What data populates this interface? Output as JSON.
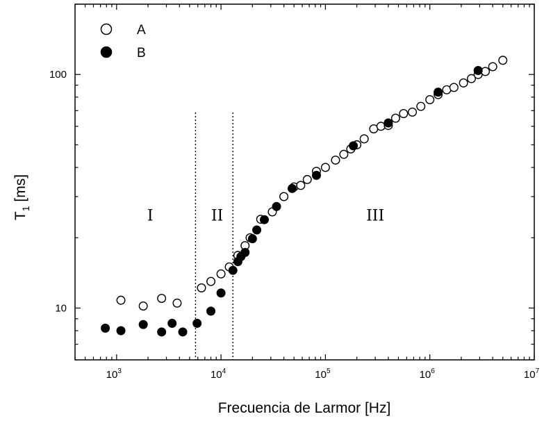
{
  "chart_data": {
    "type": "scatter",
    "xlabel": "Frecuencia de Larmor [Hz]",
    "ylabel_main": "T",
    "ylabel_sub": "1",
    "ylabel_tail": " [ms]",
    "x_scale": "log",
    "y_scale": "log",
    "xlim": [
      400,
      10000000
    ],
    "ylim": [
      6,
      200
    ],
    "x_ticks": [
      {
        "value": 1000,
        "base": "10",
        "exp": "3"
      },
      {
        "value": 10000,
        "base": "10",
        "exp": "4"
      },
      {
        "value": 100000,
        "base": "10",
        "exp": "5"
      },
      {
        "value": 1000000,
        "base": "10",
        "exp": "6"
      },
      {
        "value": 10000000,
        "base": "10",
        "exp": "7"
      }
    ],
    "y_ticks": [
      {
        "value": 10,
        "label": "10"
      },
      {
        "value": 100,
        "label": "100"
      }
    ],
    "grid": false,
    "legend_position": "top-left",
    "series": [
      {
        "name": "A",
        "marker": "open-circle",
        "color": "#000000",
        "points": [
          [
            1100,
            10.8
          ],
          [
            1800,
            10.2
          ],
          [
            2700,
            11.0
          ],
          [
            3800,
            10.5
          ],
          [
            6500,
            12.2
          ],
          [
            8000,
            13.0
          ],
          [
            10000,
            14.0
          ],
          [
            12000,
            15.0
          ],
          [
            14500,
            16.8
          ],
          [
            17000,
            18.5
          ],
          [
            19000,
            20.0
          ],
          [
            24000,
            24.0
          ],
          [
            31000,
            25.8
          ],
          [
            40000,
            30.0
          ],
          [
            50000,
            33.0
          ],
          [
            58000,
            33.5
          ],
          [
            67000,
            35.5
          ],
          [
            82000,
            38.5
          ],
          [
            100000,
            40.0
          ],
          [
            125000,
            43.0
          ],
          [
            150000,
            45.5
          ],
          [
            175000,
            48.0
          ],
          [
            200000,
            50.0
          ],
          [
            235000,
            53.0
          ],
          [
            290000,
            58.5
          ],
          [
            340000,
            60.0
          ],
          [
            400000,
            60.5
          ],
          [
            470000,
            65.0
          ],
          [
            560000,
            68.0
          ],
          [
            680000,
            69.0
          ],
          [
            820000,
            73.0
          ],
          [
            1000000,
            78.0
          ],
          [
            1200000,
            82.0
          ],
          [
            1450000,
            86.0
          ],
          [
            1700000,
            88.0
          ],
          [
            2100000,
            92.0
          ],
          [
            2500000,
            96.0
          ],
          [
            2900000,
            100.0
          ],
          [
            3400000,
            103.0
          ],
          [
            4000000,
            108.0
          ],
          [
            5000000,
            115.0
          ]
        ]
      },
      {
        "name": "B",
        "marker": "filled-circle",
        "color": "#000000",
        "points": [
          [
            780,
            8.2
          ],
          [
            1100,
            8.0
          ],
          [
            1800,
            8.5
          ],
          [
            2700,
            7.9
          ],
          [
            3400,
            8.6
          ],
          [
            4300,
            7.9
          ],
          [
            5900,
            8.6
          ],
          [
            8000,
            9.7
          ],
          [
            10000,
            11.6
          ],
          [
            13000,
            14.5
          ],
          [
            14500,
            15.8
          ],
          [
            15500,
            16.6
          ],
          [
            17000,
            17.3
          ],
          [
            20000,
            19.8
          ],
          [
            22000,
            21.6
          ],
          [
            26000,
            23.9
          ],
          [
            34000,
            27.2
          ],
          [
            48000,
            32.5
          ],
          [
            82000,
            37.0
          ],
          [
            185000,
            49.5
          ],
          [
            400000,
            62.0
          ],
          [
            1200000,
            84.0
          ],
          [
            2900000,
            104.0
          ]
        ]
      }
    ],
    "region_labels": [
      {
        "text": "I",
        "x": 2100,
        "y": 25.0
      },
      {
        "text": "II",
        "x": 9200,
        "y": 25.0
      },
      {
        "text": "III",
        "x": 300000,
        "y": 25.0
      }
    ],
    "vertical_lines": [
      5700,
      13000
    ]
  }
}
